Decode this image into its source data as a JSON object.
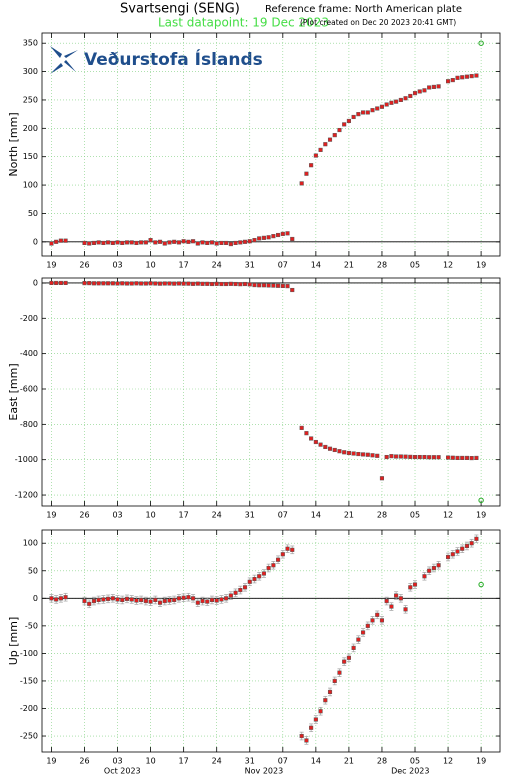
{
  "header": {
    "title": "Svartsengi (SENG)",
    "reference": "Reference frame: North American plate",
    "last_datapoint": "Last datapoint: 19 Dec 2023",
    "created": "(Plot created on Dec 20 2023 20:41 GMT)",
    "logo": "Veðurstofa Íslands"
  },
  "chart_data": [
    {
      "type": "scatter",
      "ylabel": "North [mm]",
      "xlim": [
        "2023-09-17",
        "2023-12-23"
      ],
      "ylim": [
        -25,
        368
      ],
      "yticks": [
        0,
        50,
        100,
        150,
        200,
        250,
        300,
        350
      ],
      "grid": true,
      "xticks": [
        {
          "value": "2023-09-19",
          "label": "19"
        },
        {
          "value": "2023-09-26",
          "label": "26"
        },
        {
          "value": "2023-10-03",
          "label": "03"
        },
        {
          "value": "2023-10-10",
          "label": "10"
        },
        {
          "value": "2023-10-17",
          "label": "17"
        },
        {
          "value": "2023-10-24",
          "label": "24"
        },
        {
          "value": "2023-10-31",
          "label": "31"
        },
        {
          "value": "2023-11-07",
          "label": "07"
        },
        {
          "value": "2023-11-14",
          "label": "14"
        },
        {
          "value": "2023-11-21",
          "label": "21"
        },
        {
          "value": "2023-11-28",
          "label": "28"
        },
        {
          "value": "2023-12-05",
          "label": "05"
        },
        {
          "value": "2023-12-12",
          "label": "12"
        },
        {
          "value": "2023-12-19",
          "label": "19"
        }
      ],
      "x": [
        "2023-09-19",
        "2023-09-20",
        "2023-09-21",
        "2023-09-22",
        "2023-09-23",
        "2023-09-24",
        "2023-09-25",
        "2023-09-26",
        "2023-09-27",
        "2023-09-28",
        "2023-09-29",
        "2023-09-30",
        "2023-10-01",
        "2023-10-02",
        "2023-10-03",
        "2023-10-04",
        "2023-10-05",
        "2023-10-06",
        "2023-10-07",
        "2023-10-08",
        "2023-10-09",
        "2023-10-10",
        "2023-10-11",
        "2023-10-12",
        "2023-10-13",
        "2023-10-14",
        "2023-10-15",
        "2023-10-16",
        "2023-10-17",
        "2023-10-18",
        "2023-10-19",
        "2023-10-20",
        "2023-10-21",
        "2023-10-22",
        "2023-10-23",
        "2023-10-24",
        "2023-10-25",
        "2023-10-26",
        "2023-10-27",
        "2023-10-28",
        "2023-10-29",
        "2023-10-30",
        "2023-10-31",
        "2023-11-01",
        "2023-11-02",
        "2023-11-03",
        "2023-11-04",
        "2023-11-05",
        "2023-11-06",
        "2023-11-07",
        "2023-11-08",
        "2023-11-09",
        "2023-11-10",
        "2023-11-11",
        "2023-11-12",
        "2023-11-13",
        "2023-11-14",
        "2023-11-15",
        "2023-11-16",
        "2023-11-17",
        "2023-11-18",
        "2023-11-19",
        "2023-11-20",
        "2023-11-21",
        "2023-11-22",
        "2023-11-23",
        "2023-11-24",
        "2023-11-25",
        "2023-11-26",
        "2023-11-27",
        "2023-11-28",
        "2023-11-29",
        "2023-11-30",
        "2023-12-01",
        "2023-12-02",
        "2023-12-03",
        "2023-12-04",
        "2023-12-05",
        "2023-12-06",
        "2023-12-07",
        "2023-12-08",
        "2023-12-09",
        "2023-12-10",
        "2023-12-11",
        "2023-12-12",
        "2023-12-13",
        "2023-12-14",
        "2023-12-15",
        "2023-12-16",
        "2023-12-17",
        "2023-12-18",
        "2023-12-19"
      ],
      "series": [
        {
          "color": "#e02020",
          "marker": "square",
          "values": [
            -3,
            0,
            2,
            2,
            null,
            null,
            null,
            -2,
            -3,
            -2,
            -1,
            -2,
            -1,
            -2,
            -1,
            -2,
            -1,
            -1,
            -2,
            -1,
            -1,
            3,
            -1,
            0,
            -3,
            -1,
            0,
            -1,
            1,
            0,
            1,
            -3,
            -1,
            -2,
            -1,
            -3,
            -2,
            -2,
            -4,
            -2,
            -1,
            0,
            1,
            3,
            6,
            7,
            8,
            10,
            12,
            14,
            15,
            5,
            null,
            103,
            120,
            135,
            152,
            162,
            172,
            180,
            188,
            197,
            207,
            213,
            220,
            225,
            228,
            228,
            232,
            235,
            238,
            242,
            245,
            247,
            250,
            253,
            257,
            262,
            265,
            267,
            272,
            273,
            274,
            null,
            283,
            285,
            289,
            290,
            291,
            292,
            293,
            null
          ]
        },
        {
          "color": "#22aa22",
          "marker": "circle",
          "x": [
            "2023-12-19"
          ],
          "values": [
            350
          ]
        }
      ]
    },
    {
      "type": "scatter",
      "ylabel": "East [mm]",
      "xlim": [
        "2023-09-17",
        "2023-12-23"
      ],
      "ylim": [
        -1262,
        28
      ],
      "yticks": [
        0,
        -200,
        -400,
        -600,
        -800,
        -1000,
        -1200
      ],
      "grid": true,
      "xticks": [
        {
          "value": "2023-09-19",
          "label": "19"
        },
        {
          "value": "2023-09-26",
          "label": "26"
        },
        {
          "value": "2023-10-03",
          "label": "03"
        },
        {
          "value": "2023-10-10",
          "label": "10"
        },
        {
          "value": "2023-10-17",
          "label": "17"
        },
        {
          "value": "2023-10-24",
          "label": "24"
        },
        {
          "value": "2023-10-31",
          "label": "31"
        },
        {
          "value": "2023-11-07",
          "label": "07"
        },
        {
          "value": "2023-11-14",
          "label": "14"
        },
        {
          "value": "2023-11-21",
          "label": "21"
        },
        {
          "value": "2023-11-28",
          "label": "28"
        },
        {
          "value": "2023-12-05",
          "label": "05"
        },
        {
          "value": "2023-12-12",
          "label": "12"
        },
        {
          "value": "2023-12-19",
          "label": "19"
        }
      ],
      "x": [
        "2023-09-19",
        "2023-09-20",
        "2023-09-21",
        "2023-09-22",
        "2023-09-23",
        "2023-09-24",
        "2023-09-25",
        "2023-09-26",
        "2023-09-27",
        "2023-09-28",
        "2023-09-29",
        "2023-09-30",
        "2023-10-01",
        "2023-10-02",
        "2023-10-03",
        "2023-10-04",
        "2023-10-05",
        "2023-10-06",
        "2023-10-07",
        "2023-10-08",
        "2023-10-09",
        "2023-10-10",
        "2023-10-11",
        "2023-10-12",
        "2023-10-13",
        "2023-10-14",
        "2023-10-15",
        "2023-10-16",
        "2023-10-17",
        "2023-10-18",
        "2023-10-19",
        "2023-10-20",
        "2023-10-21",
        "2023-10-22",
        "2023-10-23",
        "2023-10-24",
        "2023-10-25",
        "2023-10-26",
        "2023-10-27",
        "2023-10-28",
        "2023-10-29",
        "2023-10-30",
        "2023-10-31",
        "2023-11-01",
        "2023-11-02",
        "2023-11-03",
        "2023-11-04",
        "2023-11-05",
        "2023-11-06",
        "2023-11-07",
        "2023-11-08",
        "2023-11-09",
        "2023-11-10",
        "2023-11-11",
        "2023-11-12",
        "2023-11-13",
        "2023-11-14",
        "2023-11-15",
        "2023-11-16",
        "2023-11-17",
        "2023-11-18",
        "2023-11-19",
        "2023-11-20",
        "2023-11-21",
        "2023-11-22",
        "2023-11-23",
        "2023-11-24",
        "2023-11-25",
        "2023-11-26",
        "2023-11-27",
        "2023-11-28",
        "2023-11-29",
        "2023-11-30",
        "2023-12-01",
        "2023-12-02",
        "2023-12-03",
        "2023-12-04",
        "2023-12-05",
        "2023-12-06",
        "2023-12-07",
        "2023-12-08",
        "2023-12-09",
        "2023-12-10",
        "2023-12-11",
        "2023-12-12",
        "2023-12-13",
        "2023-12-14",
        "2023-12-15",
        "2023-12-16",
        "2023-12-17",
        "2023-12-18",
        "2023-12-19"
      ],
      "series": [
        {
          "color": "#e02020",
          "marker": "square",
          "values": [
            0,
            0,
            0,
            0,
            null,
            null,
            null,
            -1,
            -1,
            -2,
            -2,
            -2,
            -2,
            -2,
            -3,
            -2,
            -3,
            -3,
            -2,
            -3,
            -3,
            -2,
            -3,
            -4,
            -3,
            -3,
            -4,
            -3,
            -4,
            -4,
            -5,
            -4,
            -5,
            -5,
            -6,
            -5,
            -6,
            -6,
            -5,
            -6,
            -7,
            -6,
            -8,
            -12,
            -13,
            -13,
            -14,
            -15,
            -16,
            -17,
            -18,
            -40,
            null,
            -820,
            -850,
            -880,
            -900,
            -915,
            -928,
            -938,
            -945,
            -952,
            -958,
            -962,
            -965,
            -968,
            -970,
            -972,
            -975,
            -978,
            -1105,
            -985,
            -980,
            -982,
            -982,
            -983,
            -984,
            -985,
            -985,
            -985,
            -986,
            -986,
            -986,
            null,
            -988,
            -989,
            -990,
            -990,
            -990,
            -991,
            -990,
            null
          ]
        },
        {
          "color": "#22aa22",
          "marker": "circle",
          "x": [
            "2023-12-19"
          ],
          "values": [
            -1230
          ]
        }
      ]
    },
    {
      "type": "scatter",
      "ylabel": "Up [mm]",
      "xlim": [
        "2023-09-17",
        "2023-12-23"
      ],
      "ylim": [
        -279,
        124
      ],
      "yticks": [
        100,
        50,
        0,
        -50,
        -100,
        -150,
        -200,
        -250
      ],
      "grid": true,
      "xticks": [
        {
          "value": "2023-09-19",
          "label": "19"
        },
        {
          "value": "2023-09-26",
          "label": "26"
        },
        {
          "value": "2023-10-03",
          "label": "03"
        },
        {
          "value": "2023-10-10",
          "label": "10"
        },
        {
          "value": "2023-10-17",
          "label": "17"
        },
        {
          "value": "2023-10-24",
          "label": "24"
        },
        {
          "value": "2023-10-31",
          "label": "31"
        },
        {
          "value": "2023-11-07",
          "label": "07"
        },
        {
          "value": "2023-11-14",
          "label": "14"
        },
        {
          "value": "2023-11-21",
          "label": "21"
        },
        {
          "value": "2023-11-28",
          "label": "28"
        },
        {
          "value": "2023-12-05",
          "label": "05"
        },
        {
          "value": "2023-12-12",
          "label": "12"
        },
        {
          "value": "2023-12-19",
          "label": "19"
        }
      ],
      "month_labels": [
        {
          "value": "2023-10-04",
          "label": "Oct 2023"
        },
        {
          "value": "2023-11-03",
          "label": "Nov 2023"
        },
        {
          "value": "2023-12-04",
          "label": "Dec 2023"
        }
      ],
      "x": [
        "2023-09-19",
        "2023-09-20",
        "2023-09-21",
        "2023-09-22",
        "2023-09-23",
        "2023-09-24",
        "2023-09-25",
        "2023-09-26",
        "2023-09-27",
        "2023-09-28",
        "2023-09-29",
        "2023-09-30",
        "2023-10-01",
        "2023-10-02",
        "2023-10-03",
        "2023-10-04",
        "2023-10-05",
        "2023-10-06",
        "2023-10-07",
        "2023-10-08",
        "2023-10-09",
        "2023-10-10",
        "2023-10-11",
        "2023-10-12",
        "2023-10-13",
        "2023-10-14",
        "2023-10-15",
        "2023-10-16",
        "2023-10-17",
        "2023-10-18",
        "2023-10-19",
        "2023-10-20",
        "2023-10-21",
        "2023-10-22",
        "2023-10-23",
        "2023-10-24",
        "2023-10-25",
        "2023-10-26",
        "2023-10-27",
        "2023-10-28",
        "2023-10-29",
        "2023-10-30",
        "2023-10-31",
        "2023-11-01",
        "2023-11-02",
        "2023-11-03",
        "2023-11-04",
        "2023-11-05",
        "2023-11-06",
        "2023-11-07",
        "2023-11-08",
        "2023-11-09",
        "2023-11-10",
        "2023-11-11",
        "2023-11-12",
        "2023-11-13",
        "2023-11-14",
        "2023-11-15",
        "2023-11-16",
        "2023-11-17",
        "2023-11-18",
        "2023-11-19",
        "2023-11-20",
        "2023-11-21",
        "2023-11-22",
        "2023-11-23",
        "2023-11-24",
        "2023-11-25",
        "2023-11-26",
        "2023-11-27",
        "2023-11-28",
        "2023-11-29",
        "2023-11-30",
        "2023-12-01",
        "2023-12-02",
        "2023-12-03",
        "2023-12-04",
        "2023-12-05",
        "2023-12-06",
        "2023-12-07",
        "2023-12-08",
        "2023-12-09",
        "2023-12-10",
        "2023-12-11",
        "2023-12-12",
        "2023-12-13",
        "2023-12-14",
        "2023-12-15",
        "2023-12-16",
        "2023-12-17",
        "2023-12-18",
        "2023-12-19"
      ],
      "series": [
        {
          "color": "#e02020",
          "marker": "square",
          "error": 7,
          "values": [
            0,
            -2,
            0,
            2,
            null,
            null,
            null,
            -5,
            -10,
            -5,
            -3,
            -2,
            -1,
            0,
            -2,
            -3,
            -1,
            -2,
            -4,
            -3,
            -5,
            -6,
            -3,
            -8,
            -5,
            -4,
            -3,
            0,
            1,
            2,
            0,
            -8,
            -5,
            -6,
            -3,
            -4,
            -2,
            0,
            5,
            10,
            15,
            20,
            30,
            35,
            40,
            45,
            55,
            60,
            70,
            80,
            90,
            88,
            null,
            -250,
            -258,
            -235,
            -220,
            -205,
            -185,
            -170,
            -150,
            -135,
            -115,
            -108,
            -90,
            -75,
            -62,
            -50,
            -40,
            -30,
            -40,
            -5,
            -15,
            5,
            0,
            -20,
            20,
            25,
            null,
            40,
            50,
            55,
            60,
            null,
            75,
            80,
            85,
            90,
            95,
            100,
            108,
            null
          ]
        },
        {
          "color": "#22aa22",
          "marker": "circle",
          "x": [
            "2023-12-19"
          ],
          "values": [
            25
          ]
        }
      ]
    }
  ]
}
